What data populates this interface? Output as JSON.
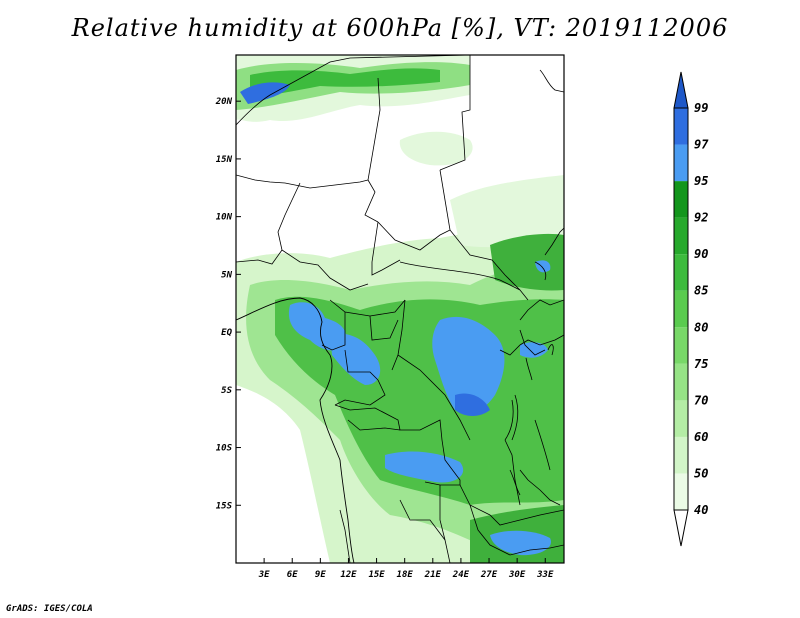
{
  "title": "Relative humidity at 600hPa [%], VT: 2019112006",
  "credit": "GrADS: IGES/COLA",
  "map": {
    "variable": "Relative humidity",
    "level": "600hPa",
    "unit": "%",
    "valid_time": "2019112006",
    "lon_range": [
      0,
      35
    ],
    "lat_range": [
      -20,
      24
    ]
  },
  "axes": {
    "lat_ticks": [
      {
        "value": 20,
        "label": "20N"
      },
      {
        "value": 15,
        "label": "15N"
      },
      {
        "value": 10,
        "label": "10N"
      },
      {
        "value": 5,
        "label": "5N"
      },
      {
        "value": 0,
        "label": "EQ"
      },
      {
        "value": -5,
        "label": "5S"
      },
      {
        "value": -10,
        "label": "10S"
      },
      {
        "value": -15,
        "label": "15S"
      }
    ],
    "lon_ticks": [
      {
        "value": 3,
        "label": "3E"
      },
      {
        "value": 6,
        "label": "6E"
      },
      {
        "value": 9,
        "label": "9E"
      },
      {
        "value": 12,
        "label": "12E"
      },
      {
        "value": 15,
        "label": "15E"
      },
      {
        "value": 18,
        "label": "18E"
      },
      {
        "value": 21,
        "label": "21E"
      },
      {
        "value": 24,
        "label": "24E"
      },
      {
        "value": 27,
        "label": "27E"
      },
      {
        "value": 30,
        "label": "30E"
      },
      {
        "value": 33,
        "label": "33E"
      }
    ]
  },
  "colorbar": {
    "levels": [
      {
        "label": "40",
        "color": "#ebfbe6"
      },
      {
        "label": "50",
        "color": "#d2f5c8"
      },
      {
        "label": "60",
        "color": "#b4eda5"
      },
      {
        "label": "70",
        "color": "#96e386"
      },
      {
        "label": "75",
        "color": "#78d868"
      },
      {
        "label": "80",
        "color": "#5acb4f"
      },
      {
        "label": "85",
        "color": "#3dbb3d"
      },
      {
        "label": "90",
        "color": "#27a92c"
      },
      {
        "label": "92",
        "color": "#13961c"
      },
      {
        "label": "95",
        "color": "#4a9cf2"
      },
      {
        "label": "97",
        "color": "#2f6ee0"
      },
      {
        "label": "99",
        "color": "#1e58c8"
      }
    ],
    "low_end_color": "#ffffff",
    "high_end_color": "#1e58c8"
  },
  "colors": {
    "dry": "#ffffff",
    "frame": "#000000",
    "border": "#000000"
  }
}
